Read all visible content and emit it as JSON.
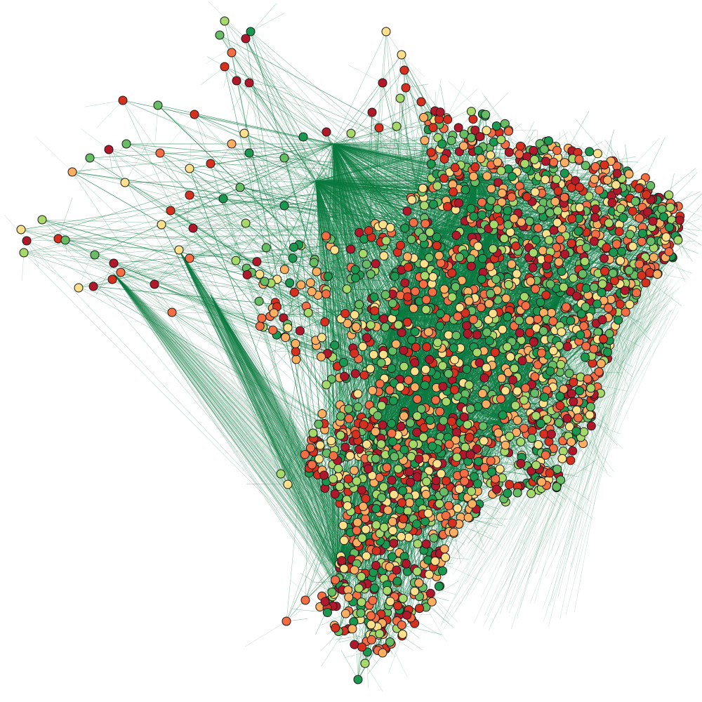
{
  "figure": {
    "kind": "geographic network graph",
    "region_shape": "Brazil",
    "background": "#ffffff",
    "edge_color": "#0b7a40",
    "node_outline": "#1a1a1a",
    "node_palette": [
      "#b2182b",
      "#d7301f",
      "#f46d43",
      "#fdae61",
      "#fee08b",
      "#a6d96a",
      "#66bd63",
      "#1a9850"
    ],
    "legend": "none",
    "axes": "none"
  }
}
